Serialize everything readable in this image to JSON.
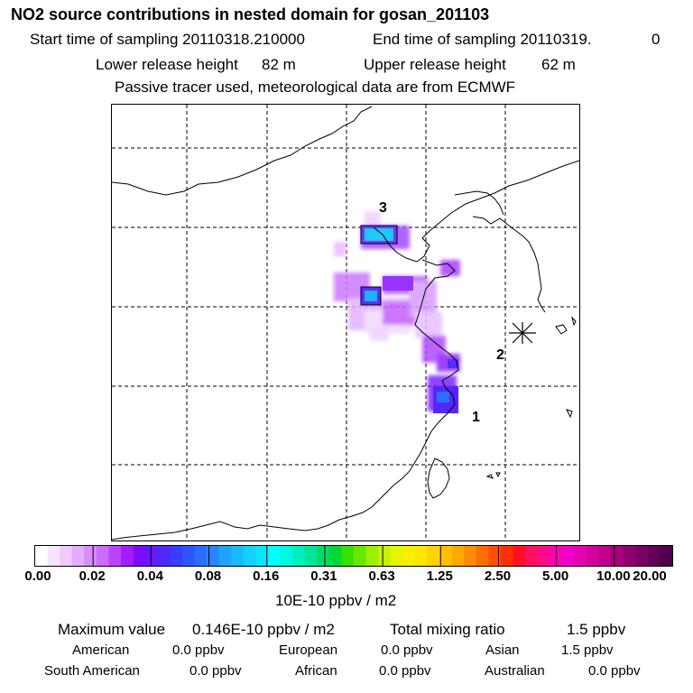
{
  "header": {
    "title": "NO2 source contributions in nested domain for gosan_201103",
    "start_label": "Start time of sampling 20110318.210000",
    "end_label": "End time of sampling 20110319.",
    "end_value": "0",
    "lower_label": "Lower release height",
    "lower_value": "82 m",
    "upper_label": "Upper release height",
    "upper_value": "62 m",
    "note": "Passive tracer used, meteorological data are from ECMWF"
  },
  "map": {
    "source_labels": [
      "1",
      "2",
      "3"
    ],
    "receptor_marker": "asterisk"
  },
  "legend": {
    "ticks": [
      "0.00",
      "0.02",
      "0.04",
      "0.08",
      "0.16",
      "0.31",
      "0.63",
      "1.25",
      "2.50",
      "5.00",
      "10.00",
      "20.00"
    ],
    "unit": "10E-10 ppbv / m2",
    "colors": [
      "#ffffff",
      "#f7e4ff",
      "#efc9ff",
      "#e4acff",
      "#d98bff",
      "#cb6cff",
      "#bb45ff",
      "#a51dff",
      "#7f0bff",
      "#6519ff",
      "#4e28ff",
      "#3a3cff",
      "#2f55ff",
      "#2a6fff",
      "#2488ff",
      "#1fa3ff",
      "#18bbff",
      "#11d2ff",
      "#0ae6ff",
      "#00ffff",
      "#00f7e0",
      "#00eebd",
      "#00e596",
      "#00dc6b",
      "#00d838",
      "#38e000",
      "#68e800",
      "#9af000",
      "#c8f300",
      "#e6f500",
      "#f4f000",
      "#fee600",
      "#ffd400",
      "#ffbf00",
      "#ffa800",
      "#ff8c00",
      "#ff6e00",
      "#ff5000",
      "#ff3000",
      "#ff1020",
      "#ff1060",
      "#ff0a8a",
      "#ff00b4",
      "#f000c8",
      "#e600b4",
      "#d6009c",
      "#c0008c",
      "#a8007c",
      "#920070",
      "#7a0064",
      "#640058",
      "#50004c"
    ]
  },
  "stats": {
    "max_label": "Maximum value",
    "max_value": "0.146E-10 ppbv / m2",
    "total_label": "Total mixing ratio",
    "total_value": "1.5 ppbv",
    "regions": [
      {
        "name": "American",
        "value": "0.0 ppbv"
      },
      {
        "name": "European",
        "value": "0.0 ppbv"
      },
      {
        "name": "Asian",
        "value": "1.5 ppbv"
      },
      {
        "name": "South American",
        "value": "0.0 ppbv"
      },
      {
        "name": "African",
        "value": "0.0 ppbv"
      },
      {
        "name": "Australian",
        "value": "0.0 ppbv"
      }
    ]
  }
}
